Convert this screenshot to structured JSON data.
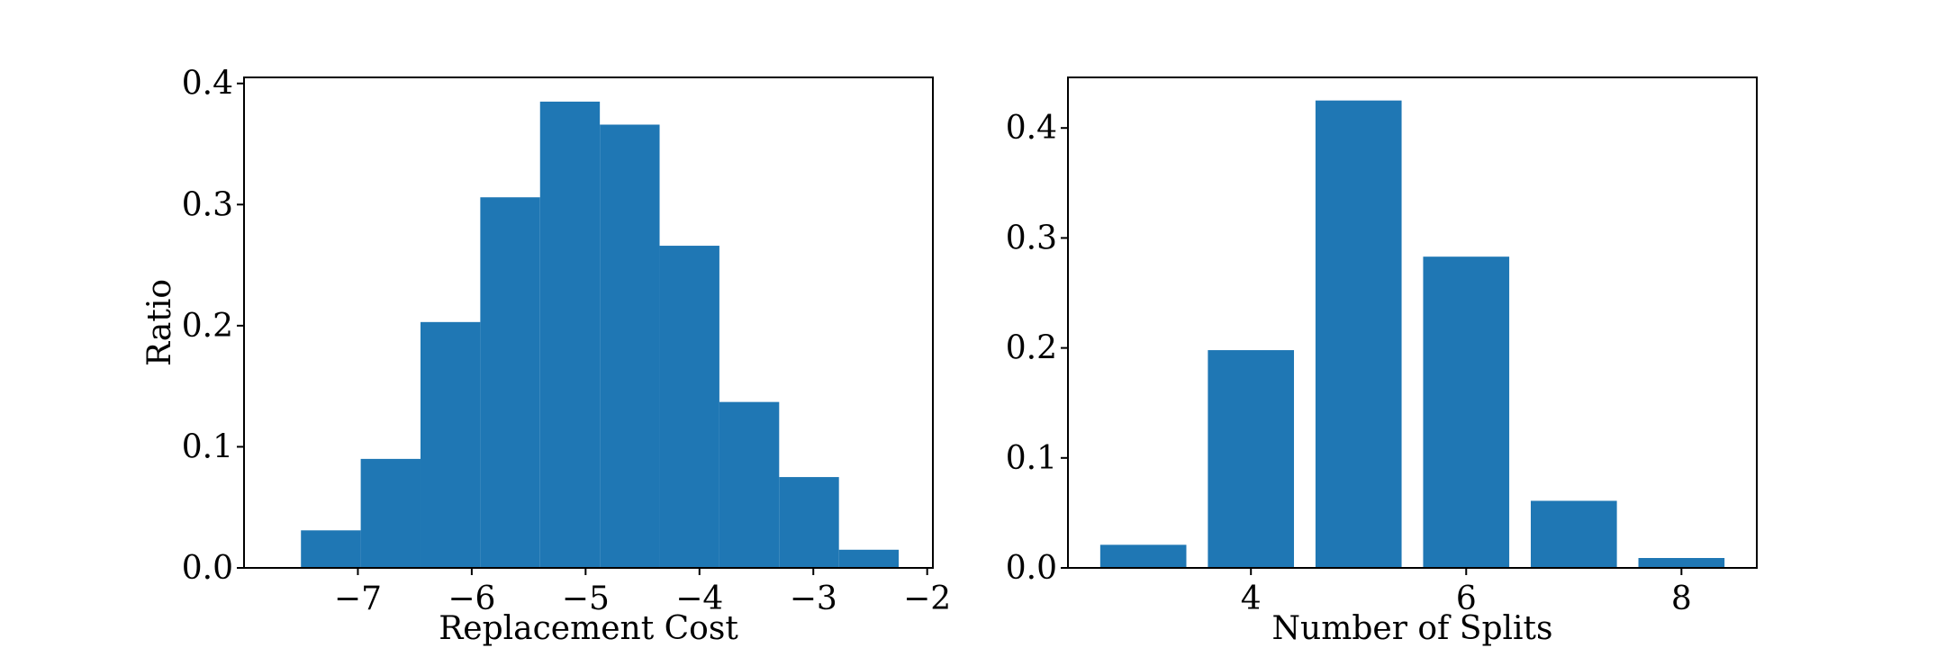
{
  "chart_data": [
    {
      "type": "bar",
      "variant": "histogram",
      "xlabel": "Replacement Cost",
      "ylabel": "Ratio",
      "color": "#1f77b4",
      "bin_edges": [
        -7.5,
        -6.975,
        -6.45,
        -5.925,
        -5.4,
        -4.875,
        -4.35,
        -3.825,
        -3.3,
        -2.775,
        -2.25
      ],
      "values": [
        0.031,
        0.09,
        0.203,
        0.306,
        0.385,
        0.366,
        0.266,
        0.137,
        0.075,
        0.015
      ],
      "xlim": [
        -8.0,
        -1.95
      ],
      "ylim": [
        0.0,
        0.405
      ],
      "xticks": [
        -7,
        -6,
        -5,
        -4,
        -3,
        -2
      ],
      "xtick_labels": [
        "−7",
        "−6",
        "−5",
        "−4",
        "−3",
        "−2"
      ],
      "yticks": [
        0.0,
        0.1,
        0.2,
        0.3,
        0.4
      ],
      "ytick_labels": [
        "0.0",
        "0.1",
        "0.2",
        "0.3",
        "0.4"
      ],
      "grid": false
    },
    {
      "type": "bar",
      "xlabel": "Number of Splits",
      "ylabel": "",
      "color": "#1f77b4",
      "categories": [
        3,
        4,
        5,
        6,
        7,
        8
      ],
      "values": [
        0.021,
        0.198,
        0.425,
        0.283,
        0.061,
        0.009
      ],
      "bar_width": 0.8,
      "xlim": [
        2.3,
        8.7
      ],
      "ylim": [
        0.0,
        0.446
      ],
      "xticks": [
        4,
        6,
        8
      ],
      "xtick_labels": [
        "4",
        "6",
        "8"
      ],
      "yticks": [
        0.0,
        0.1,
        0.2,
        0.3,
        0.4
      ],
      "ytick_labels": [
        "0.0",
        "0.1",
        "0.2",
        "0.3",
        "0.4"
      ],
      "grid": false
    }
  ]
}
